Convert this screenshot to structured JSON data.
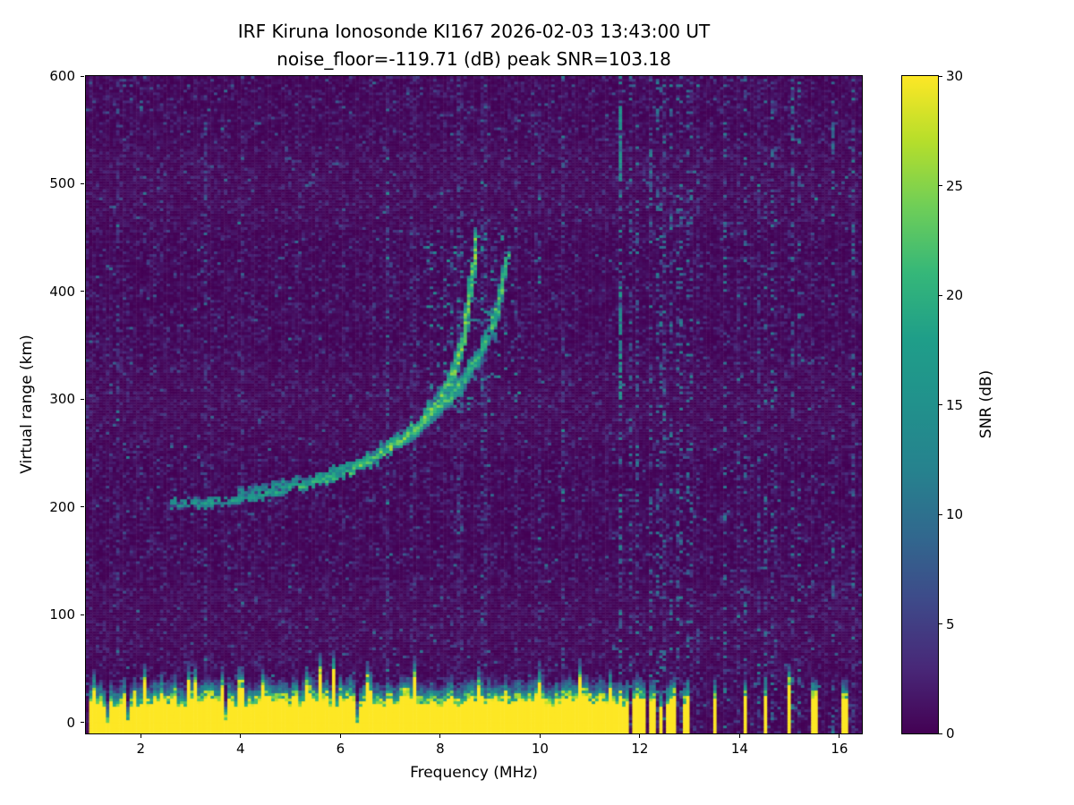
{
  "chart_data": {
    "type": "heatmap",
    "title_line1": "IRF Kiruna Ionosonde KI167 2026-02-03 13:43:00  UT",
    "title_line2": "noise_floor=-119.71 (dB) peak SNR=103.18",
    "xlabel": "Frequency (MHz)",
    "ylabel": "Virtual range (km)",
    "colorbar_label": "SNR (dB)",
    "noise_floor_db": -119.71,
    "peak_snr_db": 103.18,
    "x_range_mhz": [
      0.9,
      16.45
    ],
    "y_range_km": [
      -10,
      600
    ],
    "xticks": [
      2,
      4,
      6,
      8,
      10,
      12,
      14,
      16
    ],
    "yticks": [
      0,
      100,
      200,
      300,
      400,
      500,
      600
    ],
    "colorbar_range_db": [
      0,
      30
    ],
    "colorbar_ticks": [
      0,
      5,
      10,
      15,
      20,
      25,
      30
    ],
    "colormap": "viridis",
    "colormap_anchors": [
      "#440154",
      "#482878",
      "#3e4989",
      "#31688e",
      "#26828e",
      "#21918c",
      "#1f9e89",
      "#35b779",
      "#6ece58",
      "#b5de2b",
      "#fde725"
    ],
    "features": {
      "ground_clutter_band": {
        "x_mhz": [
          0.95,
          11.62
        ],
        "top_km_mean": 26,
        "snr_db": 30,
        "gaps_mhz": [
          1.35,
          1.75,
          3.7,
          6.32
        ],
        "bars_beyond_mhz": [
          [
            11.68,
            11.78
          ],
          [
            11.86,
            11.96
          ],
          [
            12.02,
            12.12
          ],
          [
            12.18,
            12.3
          ],
          [
            12.38,
            12.48
          ],
          [
            12.56,
            12.74
          ],
          [
            12.9,
            13.02
          ],
          [
            13.46,
            13.56
          ],
          [
            14.06,
            14.16
          ],
          [
            14.46,
            14.56
          ],
          [
            14.96,
            15.06
          ],
          [
            15.46,
            15.6
          ],
          [
            16.06,
            16.16
          ]
        ]
      },
      "echo_trace_o_mode": [
        [
          2.6,
          203
        ],
        [
          3.2,
          204
        ],
        [
          3.8,
          207
        ],
        [
          4.4,
          211
        ],
        [
          5.0,
          217
        ],
        [
          5.6,
          224
        ],
        [
          6.2,
          234
        ],
        [
          6.7,
          246
        ],
        [
          7.2,
          261
        ],
        [
          7.6,
          277
        ],
        [
          7.9,
          293
        ],
        [
          8.15,
          312
        ],
        [
          8.35,
          335
        ],
        [
          8.5,
          362
        ],
        [
          8.6,
          395
        ],
        [
          8.67,
          425
        ],
        [
          8.72,
          452
        ]
      ],
      "echo_trace_x_mode": [
        [
          4.0,
          214
        ],
        [
          4.6,
          218
        ],
        [
          5.2,
          224
        ],
        [
          5.8,
          232
        ],
        [
          6.4,
          242
        ],
        [
          6.9,
          254
        ],
        [
          7.4,
          268
        ],
        [
          7.8,
          284
        ],
        [
          8.15,
          300
        ],
        [
          8.5,
          320
        ],
        [
          8.8,
          342
        ],
        [
          9.05,
          368
        ],
        [
          9.2,
          395
        ],
        [
          9.3,
          418
        ],
        [
          9.35,
          433
        ]
      ],
      "interference_line_mhz": 11.62,
      "interference_band_mhz": [
        11.7,
        16.45
      ]
    }
  }
}
